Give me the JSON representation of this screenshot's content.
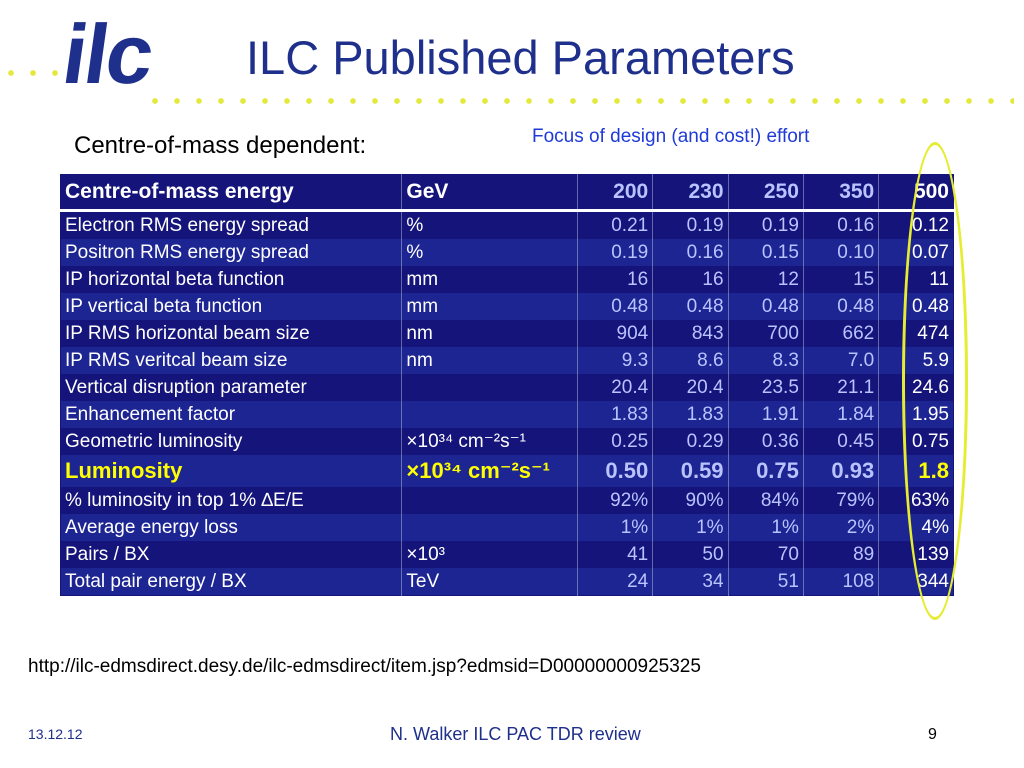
{
  "logo": {
    "text": "ilc"
  },
  "title": "ILC Published Parameters",
  "subtitle": "Centre-of-mass dependent:",
  "focus_note": "Focus of design (and cost!) effort",
  "table": {
    "header": {
      "label": "Centre-of-mass energy",
      "unit": "GeV",
      "values": [
        "200",
        "230",
        "250",
        "350",
        "500"
      ]
    },
    "rows": [
      {
        "label": "Electron RMS energy spread",
        "unit": "%",
        "values": [
          "0.21",
          "0.19",
          "0.19",
          "0.16",
          "0.12"
        ]
      },
      {
        "label": "Positron RMS energy spread",
        "unit": "%",
        "values": [
          "0.19",
          "0.16",
          "0.15",
          "0.10",
          "0.07"
        ]
      },
      {
        "label": "IP horizontal beta function",
        "unit": "mm",
        "values": [
          "16",
          "16",
          "12",
          "15",
          "11"
        ]
      },
      {
        "label": "IP vertical beta function",
        "unit": "mm",
        "values": [
          "0.48",
          "0.48",
          "0.48",
          "0.48",
          "0.48"
        ]
      },
      {
        "label": "IP RMS horizontal beam size",
        "unit": "nm",
        "values": [
          "904",
          "843",
          "700",
          "662",
          "474"
        ]
      },
      {
        "label": "IP RMS veritcal beam size",
        "unit": "nm",
        "values": [
          "9.3",
          "8.6",
          "8.3",
          "7.0",
          "5.9"
        ]
      },
      {
        "label": "Vertical disruption parameter",
        "unit": "",
        "values": [
          "20.4",
          "20.4",
          "23.5",
          "21.1",
          "24.6"
        ]
      },
      {
        "label": "Enhancement factor",
        "unit": "",
        "values": [
          "1.83",
          "1.83",
          "1.91",
          "1.84",
          "1.95"
        ]
      },
      {
        "label": "Geometric luminosity",
        "unit": "×10³⁴ cm⁻²s⁻¹",
        "values": [
          "0.25",
          "0.29",
          "0.36",
          "0.45",
          "0.75"
        ]
      },
      {
        "label": "Luminosity",
        "unit": "×10³⁴ cm⁻²s⁻¹",
        "values": [
          "0.50",
          "0.59",
          "0.75",
          "0.93",
          "1.8"
        ]
      },
      {
        "label": "% luminosity in top 1% ∆E/E",
        "unit": "",
        "values": [
          "92%",
          "90%",
          "84%",
          "79%",
          "63%"
        ]
      },
      {
        "label": "Average energy loss",
        "unit": "",
        "values": [
          "1%",
          "1%",
          "1%",
          "2%",
          "4%"
        ]
      },
      {
        "label": "Pairs / BX",
        "unit": "×10³",
        "values": [
          "41",
          "50",
          "70",
          "89",
          "139"
        ]
      },
      {
        "label": "Total pair energy / BX",
        "unit": "TeV",
        "values": [
          "24",
          "34",
          "51",
          "108",
          "344"
        ]
      }
    ]
  },
  "url": "http://ilc-edmsdirect.desy.de/ilc-edmsdirect/item.jsp?edmsid=D00000000925325",
  "footer": {
    "date": "13.12.12",
    "center": "N. Walker ILC PAC TDR review",
    "page": "9"
  },
  "colors": {
    "title": "#1e2f8c",
    "table_bg": "#14147a",
    "accent_yellow": "#ffff00",
    "focus_text": "#1f3ad6"
  }
}
